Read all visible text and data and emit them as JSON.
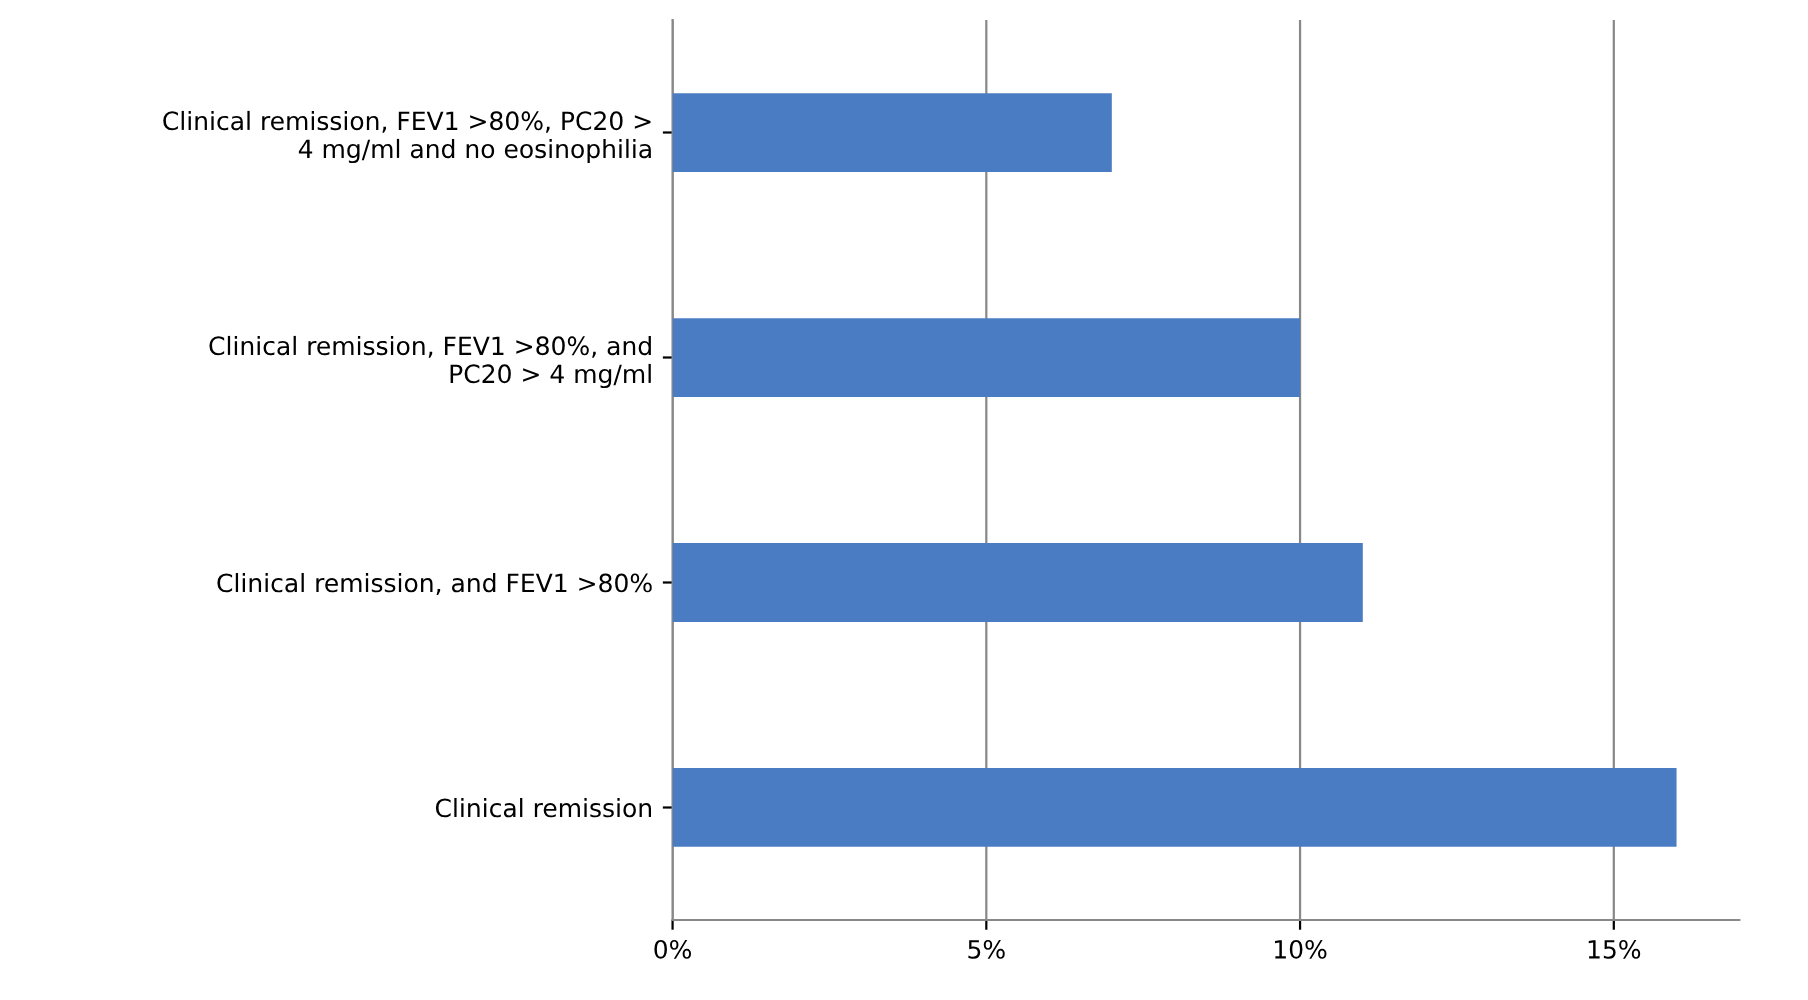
{
  "chart_data": {
    "type": "bar",
    "orientation": "horizontal",
    "categories": [
      "Clinical remission, FEV1 >80%, PC20 >\n4 mg/ml and no eosinophilia",
      "Clinical remission, FEV1 >80%, and\nPC20 > 4 mg/ml",
      "Clinical remission, and FEV1 >80%",
      "Clinical remission"
    ],
    "values": [
      7,
      10,
      11,
      16
    ],
    "color": "#4a7cc4",
    "xlim": [
      0,
      17
    ],
    "xticks": [
      {
        "value": 0,
        "label": "0%"
      },
      {
        "value": 5,
        "label": "5%"
      },
      {
        "value": 10,
        "label": "10%"
      },
      {
        "value": 15,
        "label": "15%"
      }
    ],
    "grid": "x"
  }
}
